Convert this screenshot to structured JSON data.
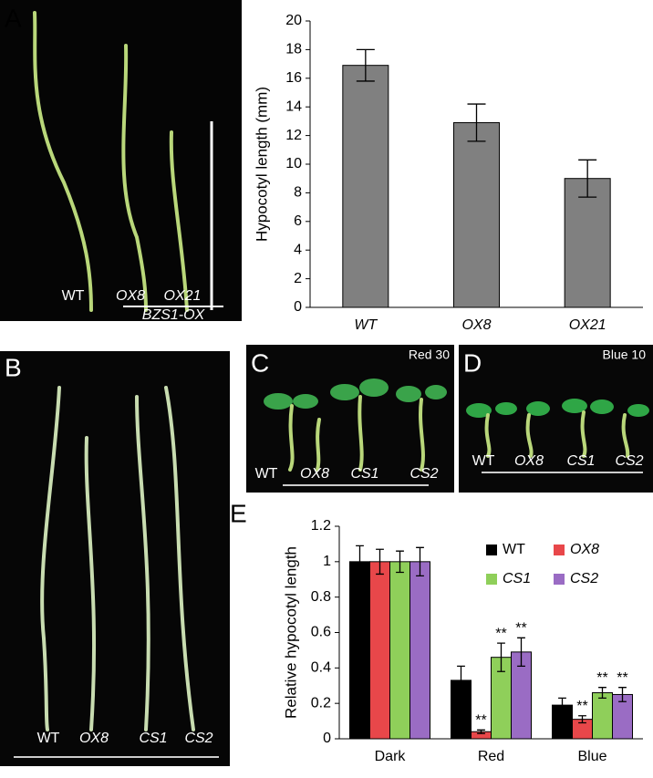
{
  "panels": {
    "A": {
      "label": "A",
      "texts": [
        "WT",
        "OX8",
        "OX21",
        "BZS1-OX"
      ]
    },
    "B": {
      "label": "B",
      "texts": [
        "WT",
        "OX8",
        "CS1",
        "CS2"
      ]
    },
    "C": {
      "label": "C",
      "title": "Red 30",
      "texts": [
        "WT",
        "OX8",
        "CS1",
        "CS2"
      ]
    },
    "D": {
      "label": "D",
      "title": "Blue 10",
      "texts": [
        "WT",
        "OX8",
        "CS1",
        "CS2"
      ]
    },
    "E": {
      "label": "E"
    }
  },
  "chart_data": [
    {
      "type": "bar",
      "y_label": "Hypocotyl length (mm)",
      "categories": [
        "WT",
        "OX8",
        "OX21"
      ],
      "values": [
        16.9,
        12.9,
        9.0
      ],
      "errors": [
        1.1,
        1.3,
        1.3
      ],
      "color": "#808080",
      "ylim": [
        0,
        20
      ],
      "yticks": [
        0,
        2,
        4,
        6,
        8,
        10,
        12,
        14,
        16,
        18,
        20
      ]
    },
    {
      "type": "bar",
      "y_label": "Relative hypocotyl length",
      "categories": [
        "Dark",
        "Red",
        "Blue"
      ],
      "series": [
        {
          "name": "WT",
          "color": "#000000",
          "values": [
            1,
            0.33,
            0.19
          ],
          "errors": [
            0.09,
            0.08,
            0.04
          ],
          "significance": [
            null,
            null,
            null
          ]
        },
        {
          "name": "OX8",
          "color": "#e8474a",
          "values": [
            1,
            0.04,
            0.11
          ],
          "errors": [
            0.07,
            0.01,
            0.02
          ],
          "significance": [
            null,
            "**",
            "**"
          ]
        },
        {
          "name": "CS1",
          "color": "#8fcf5a",
          "values": [
            1,
            0.46,
            0.26
          ],
          "errors": [
            0.06,
            0.08,
            0.03
          ],
          "significance": [
            null,
            "**",
            "**"
          ]
        },
        {
          "name": "CS2",
          "color": "#9a6cc4",
          "values": [
            1,
            0.49,
            0.25
          ],
          "errors": [
            0.08,
            0.08,
            0.04
          ],
          "significance": [
            null,
            "**",
            "**"
          ]
        }
      ],
      "ylim": [
        0,
        1.2
      ],
      "yticks": [
        0,
        0.2,
        0.4,
        0.6,
        0.8,
        1,
        1.2
      ]
    }
  ]
}
